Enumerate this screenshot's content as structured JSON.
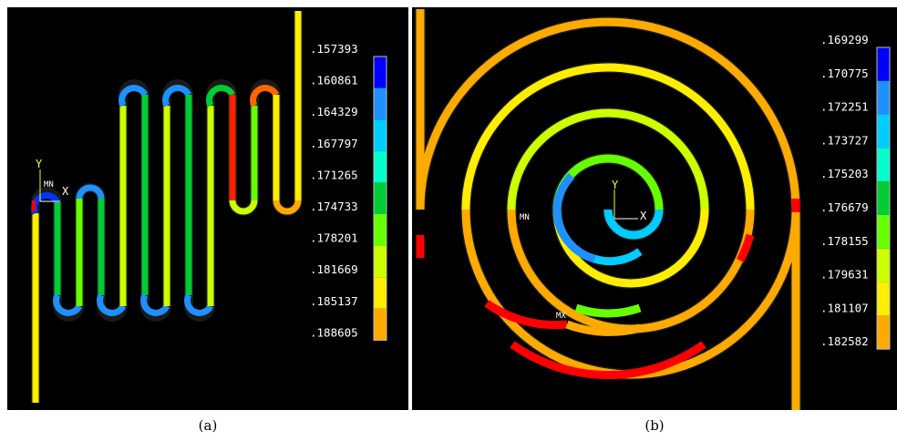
{
  "panels": [
    {
      "id": "a",
      "caption": "(a)",
      "legend": {
        "values": [
          ".157393",
          ".160861",
          ".164329",
          ".167797",
          ".171265",
          ".174733",
          ".178201",
          ".181669",
          ".185137",
          ".188605"
        ],
        "colors": [
          "#0000ff",
          "#1e90ff",
          "#00ccff",
          "#00ffcc",
          "#00cc33",
          "#66ff00",
          "#ccff00",
          "#ffee00",
          "#ffaa00",
          "#ff0000"
        ]
      },
      "axis": {
        "x": "X",
        "y": "Y"
      },
      "markers": {
        "min": "MN"
      }
    },
    {
      "id": "b",
      "caption": "(b)",
      "legend": {
        "values": [
          ".169299",
          ".170775",
          ".172251",
          ".173727",
          ".175203",
          ".176679",
          ".178155",
          ".179631",
          ".181107",
          ".182582"
        ],
        "colors": [
          "#0000ff",
          "#1e90ff",
          "#00ccff",
          "#00ffcc",
          "#00cc33",
          "#66ff00",
          "#ccff00",
          "#ffee00",
          "#ffaa00",
          "#ff0000"
        ]
      },
      "axis": {
        "x": "X",
        "y": "Y"
      },
      "markers": {
        "min": "MN",
        "max": "MX"
      }
    }
  ]
}
